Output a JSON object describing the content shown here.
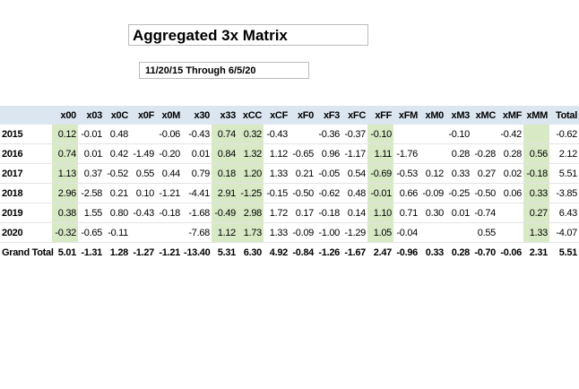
{
  "header": {
    "title": "Aggregated 3x Matrix",
    "subtitle": "11/20/15 Through 6/5/20"
  },
  "table": {
    "columns": [
      "x00",
      "x03",
      "x0C",
      "x0F",
      "x0M",
      "x30",
      "x33",
      "xCC",
      "xCF",
      "xF0",
      "xF3",
      "xFC",
      "xFF",
      "xFM",
      "xM0",
      "xM3",
      "xMC",
      "xMF",
      "xMM",
      "Total"
    ],
    "highlight_columns": [
      "x00",
      "x33",
      "xCC",
      "xFF",
      "xMM"
    ],
    "rows": [
      {
        "label": "2015",
        "cells": [
          "0.12",
          "-0.01",
          "0.48",
          null,
          "-0.06",
          "-0.43",
          "0.74",
          "0.32",
          "-0.43",
          null,
          "-0.36",
          "-0.37",
          "-0.10",
          null,
          null,
          "-0.10",
          null,
          "-0.42",
          null,
          "-0.62"
        ]
      },
      {
        "label": "2016",
        "cells": [
          "0.74",
          "0.01",
          "0.42",
          "-1.49",
          "-0.20",
          "0.01",
          "0.84",
          "1.32",
          "1.12",
          "-0.65",
          "0.96",
          "-1.17",
          "1.11",
          "-1.76",
          null,
          "0.28",
          "-0.28",
          "0.28",
          "0.56",
          "2.12"
        ]
      },
      {
        "label": "2017",
        "cells": [
          "1.13",
          "0.37",
          "-0.52",
          "0.55",
          "0.44",
          "0.79",
          "0.18",
          "1.20",
          "1.33",
          "0.21",
          "-0.05",
          "0.54",
          "-0.69",
          "-0.53",
          "0.12",
          "0.33",
          "0.27",
          "0.02",
          "-0.18",
          "5.51"
        ]
      },
      {
        "label": "2018",
        "cells": [
          "2.96",
          "-2.58",
          "0.21",
          "0.10",
          "-1.21",
          "-4.41",
          "2.91",
          "-1.25",
          "-0.15",
          "-0.50",
          "-0.62",
          "0.48",
          "-0.01",
          "0.66",
          "-0.09",
          "-0.25",
          "-0.50",
          "0.06",
          "0.33",
          "-3.85"
        ]
      },
      {
        "label": "2019",
        "cells": [
          "0.38",
          "1.55",
          "0.80",
          "-0.43",
          "-0.18",
          "-1.68",
          "-0.49",
          "2.98",
          "1.72",
          "0.17",
          "-0.18",
          "0.14",
          "1.10",
          "0.71",
          "0.30",
          "0.01",
          "-0.74",
          null,
          "0.27",
          "6.43"
        ]
      },
      {
        "label": "2020",
        "cells": [
          "-0.32",
          "-0.65",
          "-0.11",
          null,
          null,
          "-7.68",
          "1.12",
          "1.73",
          "1.33",
          "-0.09",
          "-1.00",
          "-1.29",
          "1.05",
          "-0.04",
          null,
          null,
          "0.55",
          null,
          "1.33",
          "-4.07"
        ]
      }
    ],
    "total_row": {
      "label": "Grand Total",
      "cells": [
        "5.01",
        "-1.31",
        "1.28",
        "-1.27",
        "-1.21",
        "-13.40",
        "5.31",
        "6.30",
        "4.92",
        "-0.84",
        "-1.26",
        "-1.67",
        "2.47",
        "-0.96",
        "0.33",
        "0.28",
        "-0.70",
        "-0.06",
        "2.31",
        "5.51"
      ]
    }
  }
}
